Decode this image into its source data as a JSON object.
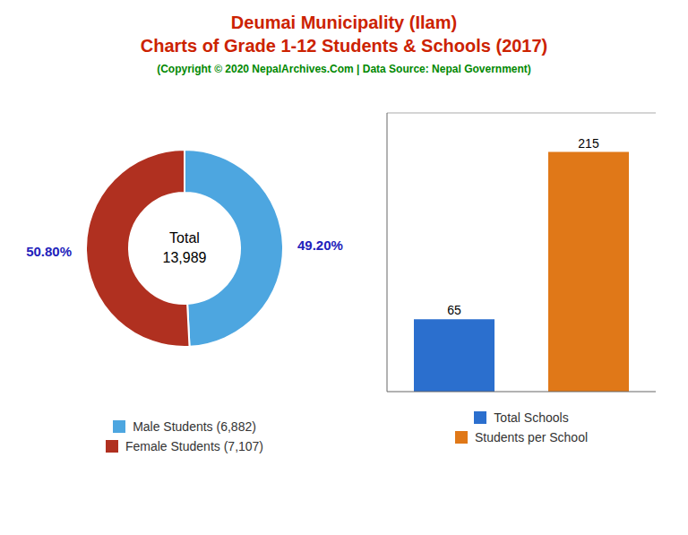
{
  "title": "Deumai Municipality (Ilam)\nCharts of Grade 1-12 Students & Schools (2017)",
  "subtitle": "(Copyright © 2020 NepalArchives.Com | Data Source: Nepal Government)",
  "title_color": "#cc2200",
  "subtitle_color": "#008800",
  "chart_data": [
    {
      "type": "donut",
      "categories": [
        "Male Students (6,882)",
        "Female Students (7,107)"
      ],
      "values": [
        49.2,
        50.8
      ],
      "value_labels": [
        "49.20%",
        "50.80%"
      ],
      "colors": [
        "#4da6e0",
        "#b03020"
      ],
      "data_labels": true,
      "annotations": [
        "Total",
        "13,989"
      ],
      "legend": "bottom"
    },
    {
      "type": "bar",
      "categories": [
        "Total Schools",
        "Students per School"
      ],
      "values": [
        65,
        215
      ],
      "colors": [
        "#2b6fce",
        "#e07818"
      ],
      "ylim": [
        0,
        250
      ],
      "tick_labels": false,
      "data_labels": true,
      "legend": "bottom"
    }
  ]
}
